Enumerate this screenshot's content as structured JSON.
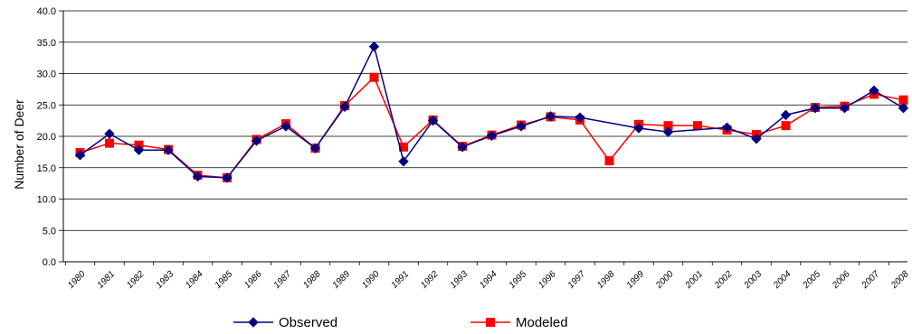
{
  "chart_data": {
    "type": "line",
    "title": "",
    "xlabel": "",
    "ylabel": "Number of Deer",
    "ylim": [
      0,
      40
    ],
    "yticks": [
      "0.0",
      "5.0",
      "10.0",
      "15.0",
      "20.0",
      "25.0",
      "30.0",
      "35.0",
      "40.0"
    ],
    "grid": "horizontal",
    "legend": "bottom",
    "categories": [
      "1980",
      "1981",
      "1982",
      "1983",
      "1984",
      "1985",
      "1986",
      "1987",
      "1988",
      "1989",
      "1990",
      "1991",
      "1992",
      "1993",
      "1994",
      "1995",
      "1996",
      "1997",
      "1998",
      "1999",
      "2000",
      "2001",
      "2002",
      "2003",
      "2004",
      "2005",
      "2006",
      "2007",
      "2008"
    ],
    "series": [
      {
        "name": "Observed",
        "color": "#000080",
        "marker": "diamond",
        "values": [
          17.0,
          20.4,
          17.8,
          17.8,
          13.6,
          13.4,
          19.3,
          21.6,
          18.1,
          24.7,
          34.3,
          16.0,
          22.5,
          18.3,
          20.1,
          21.6,
          23.2,
          23.0,
          null,
          21.3,
          20.7,
          null,
          21.4,
          19.6,
          23.4,
          24.5,
          24.5,
          27.3,
          24.5
        ]
      },
      {
        "name": "Modeled",
        "color": "#ff0000",
        "marker": "square",
        "values": [
          17.4,
          18.9,
          18.6,
          17.9,
          13.8,
          13.4,
          19.5,
          22.0,
          18.1,
          24.9,
          29.4,
          18.3,
          22.6,
          18.4,
          20.2,
          21.8,
          23.1,
          22.6,
          16.1,
          21.9,
          21.7,
          21.7,
          21.0,
          20.3,
          21.7,
          24.6,
          24.8,
          26.7,
          25.8
        ]
      }
    ]
  }
}
